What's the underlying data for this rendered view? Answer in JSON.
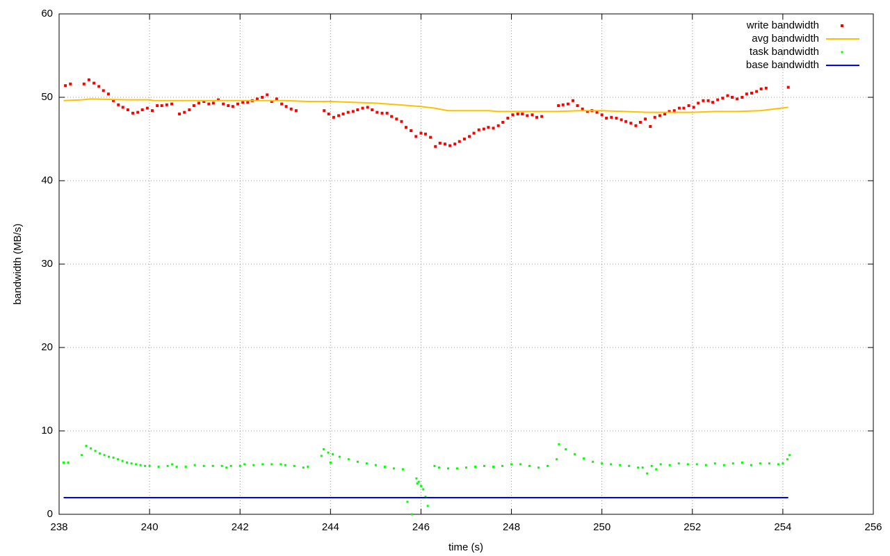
{
  "chart_data": {
    "type": "line",
    "xlabel": "time (s)",
    "ylabel": "bandwidth (MB/s)",
    "xlim": [
      238,
      256
    ],
    "xticks": [
      238,
      240,
      242,
      244,
      246,
      248,
      250,
      252,
      254,
      256
    ],
    "ylim": [
      0,
      60
    ],
    "yticks": [
      0,
      10,
      20,
      30,
      40,
      50,
      60
    ],
    "grid": true,
    "legend": "top-right",
    "series": [
      {
        "name": "write bandwidth",
        "color": "#ff0000",
        "style": "points",
        "x": [
          238.14,
          238.25,
          238.55,
          238.66,
          238.77,
          238.88,
          238.98,
          239.09,
          239.2,
          239.31,
          239.41,
          239.52,
          239.63,
          239.74,
          239.84,
          239.95,
          240.06,
          240.17,
          240.27,
          240.38,
          240.49,
          240.66,
          240.77,
          240.88,
          240.98,
          241.09,
          241.2,
          241.31,
          241.41,
          241.52,
          241.63,
          241.74,
          241.84,
          241.95,
          242.06,
          242.17,
          242.27,
          242.38,
          242.49,
          242.6,
          242.7,
          242.81,
          242.92,
          243.02,
          243.13,
          243.24,
          243.86,
          243.96,
          244.07,
          244.18,
          244.28,
          244.39,
          244.5,
          244.6,
          244.71,
          244.82,
          244.92,
          245.03,
          245.14,
          245.25,
          245.35,
          245.46,
          245.57,
          245.67,
          245.78,
          245.89,
          246.0,
          246.1,
          246.21,
          246.32,
          246.42,
          246.53,
          246.64,
          246.75,
          246.85,
          246.96,
          247.07,
          247.17,
          247.28,
          247.39,
          247.49,
          247.6,
          247.71,
          247.81,
          247.92,
          248.03,
          248.14,
          248.24,
          248.35,
          248.46,
          248.56,
          248.67,
          249.04,
          249.14,
          249.25,
          249.36,
          249.46,
          249.57,
          249.68,
          249.78,
          249.89,
          250.0,
          250.1,
          250.21,
          250.32,
          250.43,
          250.53,
          250.64,
          250.75,
          250.85,
          250.96,
          251.07,
          251.17,
          251.28,
          251.39,
          251.49,
          251.6,
          251.71,
          251.81,
          251.92,
          252.03,
          252.13,
          252.24,
          252.35,
          252.45,
          252.56,
          252.67,
          252.78,
          252.88,
          252.99,
          253.1,
          253.2,
          253.31,
          253.42,
          253.52,
          253.63,
          254.12
        ],
        "values": [
          51.4,
          51.6,
          51.6,
          52.1,
          51.7,
          51.3,
          50.8,
          50.4,
          49.6,
          49.1,
          48.8,
          48.5,
          48.1,
          48.2,
          48.5,
          48.7,
          48.4,
          49.0,
          49.0,
          49.1,
          49.2,
          48.0,
          48.2,
          48.5,
          49.0,
          49.3,
          49.5,
          49.2,
          49.3,
          49.7,
          49.2,
          49.0,
          48.9,
          49.2,
          49.4,
          49.4,
          49.6,
          49.8,
          50.0,
          50.3,
          49.5,
          49.8,
          49.2,
          48.9,
          48.6,
          48.4,
          48.4,
          48.0,
          47.6,
          47.8,
          48.0,
          48.2,
          48.3,
          48.5,
          48.7,
          48.8,
          48.5,
          48.2,
          48.1,
          48.1,
          47.7,
          47.4,
          47.1,
          46.4,
          46.0,
          45.3,
          45.7,
          45.6,
          45.2,
          44.1,
          44.5,
          44.4,
          44.2,
          44.4,
          44.7,
          45.0,
          45.3,
          45.7,
          46.1,
          46.2,
          46.4,
          46.3,
          46.6,
          47.0,
          47.5,
          47.9,
          48.0,
          48.0,
          47.8,
          47.9,
          47.6,
          47.7,
          49.0,
          49.1,
          49.2,
          49.6,
          49.0,
          48.6,
          48.3,
          48.4,
          48.2,
          47.9,
          47.5,
          47.6,
          47.5,
          47.3,
          47.1,
          46.9,
          46.6,
          47.0,
          47.4,
          46.5,
          47.6,
          47.8,
          48.0,
          48.3,
          48.4,
          48.7,
          48.7,
          49.0,
          48.8,
          49.3,
          49.6,
          49.6,
          49.4,
          49.7,
          49.9,
          50.2,
          50.0,
          49.8,
          50.0,
          50.4,
          50.5,
          50.7,
          51.0,
          51.1,
          51.2
        ]
      },
      {
        "name": "avg bandwidth",
        "color": "#ffc000",
        "style": "line",
        "x": [
          238.1,
          238.5,
          238.7,
          239.5,
          240,
          240.1,
          242,
          243,
          243.5,
          244,
          244.5,
          245,
          245.5,
          246,
          246.3,
          246.5,
          246.6,
          247.5,
          247.7,
          249,
          249.5,
          250,
          250.5,
          251,
          251.5,
          252,
          252.5,
          253,
          253.5,
          254.12
        ],
        "values": [
          49.6,
          49.7,
          49.8,
          49.7,
          49.7,
          49.6,
          49.6,
          49.6,
          49.5,
          49.5,
          49.4,
          49.3,
          49.1,
          48.9,
          48.7,
          48.5,
          48.4,
          48.4,
          48.3,
          48.3,
          48.4,
          48.4,
          48.3,
          48.2,
          48.2,
          48.2,
          48.3,
          48.3,
          48.4,
          48.8
        ]
      },
      {
        "name": "task bandwidth",
        "color": "#00ff00",
        "style": "points",
        "x": [
          238.1,
          238.2,
          238.5,
          238.6,
          238.7,
          238.8,
          238.9,
          239.0,
          239.1,
          239.2,
          239.3,
          239.4,
          239.5,
          239.6,
          239.7,
          239.8,
          239.9,
          240.0,
          240.2,
          240.4,
          240.5,
          240.6,
          240.8,
          241.0,
          241.2,
          241.4,
          241.6,
          241.7,
          241.8,
          242.0,
          242.1,
          242.3,
          242.5,
          242.7,
          242.9,
          243.0,
          243.2,
          243.4,
          243.5,
          243.8,
          243.85,
          243.95,
          244.0,
          244.05,
          244.2,
          244.4,
          244.6,
          244.8,
          245.0,
          245.2,
          245.4,
          245.6,
          245.7,
          245.8,
          245.9,
          245.92,
          245.95,
          246.0,
          246.05,
          246.1,
          246.15,
          246.3,
          246.4,
          246.6,
          246.8,
          247.0,
          247.2,
          247.4,
          247.6,
          247.8,
          248.0,
          248.2,
          248.4,
          248.6,
          248.8,
          249.0,
          249.05,
          249.2,
          249.4,
          249.6,
          249.8,
          250.0,
          250.2,
          250.4,
          250.6,
          250.8,
          250.9,
          251.0,
          251.1,
          251.2,
          251.3,
          251.5,
          251.7,
          251.9,
          252.1,
          252.3,
          252.5,
          252.7,
          252.9,
          253.1,
          253.3,
          253.5,
          253.7,
          253.9,
          254.0,
          254.1,
          254.15
        ],
        "values": [
          6.2,
          6.2,
          7.1,
          8.2,
          7.9,
          7.6,
          7.3,
          7.1,
          6.9,
          6.8,
          6.6,
          6.4,
          6.2,
          6.1,
          6.0,
          5.9,
          5.8,
          5.8,
          5.7,
          5.8,
          6.0,
          5.7,
          5.7,
          5.9,
          5.8,
          5.8,
          5.8,
          5.6,
          5.8,
          5.8,
          6.0,
          5.9,
          6.0,
          6.0,
          6.0,
          5.9,
          5.8,
          5.6,
          5.7,
          7.0,
          7.8,
          7.4,
          6.2,
          7.2,
          6.9,
          6.6,
          6.3,
          6.1,
          5.9,
          5.7,
          5.5,
          5.4,
          1.5,
          0.0,
          4.3,
          3.7,
          3.9,
          3.4,
          3.0,
          2.1,
          1.0,
          5.8,
          5.6,
          5.5,
          5.5,
          5.6,
          5.7,
          5.8,
          5.7,
          5.8,
          6.0,
          6.0,
          5.8,
          5.6,
          5.8,
          6.6,
          8.4,
          7.8,
          7.2,
          6.7,
          6.3,
          6.1,
          6.0,
          5.9,
          5.8,
          5.6,
          5.6,
          4.9,
          5.8,
          5.4,
          6.0,
          5.9,
          6.1,
          6.0,
          6.0,
          5.9,
          6.1,
          5.9,
          6.1,
          6.2,
          5.9,
          6.1,
          6.1,
          6.0,
          6.1,
          6.6,
          7.1
        ]
      },
      {
        "name": "base bandwidth",
        "color": "#0000ff",
        "style": "line",
        "x": [
          238.1,
          254.12
        ],
        "values": [
          2,
          2
        ]
      }
    ]
  }
}
